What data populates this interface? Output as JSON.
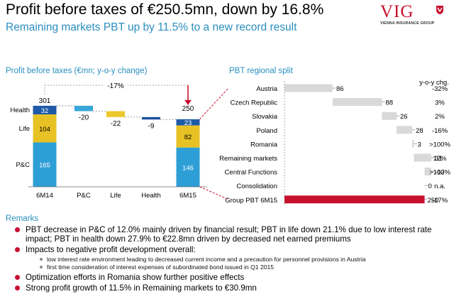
{
  "header": {
    "title": "Profit before taxes of €250.5mn, down by 16.8%",
    "subtitle": "Remaining markets PBT up by 11.5% to a new record result"
  },
  "logo": {
    "word": "VIG",
    "tagline": "VIENNA INSURANCE GROUP"
  },
  "left_title": "Profit before taxes (€mn; y-o-y change)",
  "right_title": "PBT regional split",
  "yoy_header": "y-o-y chg.",
  "chart_data": [
    {
      "type": "waterfall",
      "title": "Profit before taxes (€mn; y-o-y change)",
      "categories": [
        "6M14",
        "P&C",
        "Life",
        "Health",
        "6M15"
      ],
      "stacks": {
        "6M14": [
          {
            "name": "P&C",
            "value": 165
          },
          {
            "name": "Life",
            "value": 104
          },
          {
            "name": "Health",
            "value": 32
          }
        ],
        "6M15": [
          {
            "name": "P&C",
            "value": 146
          },
          {
            "name": "Life",
            "value": 82
          },
          {
            "name": "Health",
            "value": 23
          }
        ]
      },
      "totals": {
        "6M14": "301",
        "6M15": "250"
      },
      "changes": [
        {
          "category": "P&C",
          "value": -20,
          "label": "-20"
        },
        {
          "category": "Life",
          "value": -22,
          "label": "-22"
        },
        {
          "category": "Health",
          "value": -9,
          "label": "-9"
        }
      ],
      "series_labels": [
        "Health",
        "Life",
        "P&C"
      ],
      "overall_change": "-17%",
      "colors": {
        "P&C": "#2e9fd6",
        "Life": "#e8c224",
        "Health": "#1f5aa8",
        "P&C_change": "#37a6d9",
        "Life_change": "#ecc72b",
        "Health_change": "#1f4f9a",
        "arrow": "#c8102e"
      }
    },
    {
      "type": "waterfall-horizontal",
      "title": "PBT regional split",
      "categories": [
        "Austria",
        "Czech Republic",
        "Slovakia",
        "Poland",
        "Romania",
        "Remaining markets",
        "Central Functions",
        "Consolidation",
        "Group PBT 6M15"
      ],
      "values": [
        86,
        88,
        26,
        28,
        3,
        31,
        -12,
        0,
        250
      ],
      "value_labels": [
        "86",
        "88",
        "26",
        "28",
        "3",
        "31",
        "-12",
        "0",
        "250"
      ],
      "yoy_change": [
        "-32%",
        "3%",
        "2%",
        "-16%",
        ">100%",
        "12%",
        ">100%",
        "n.a.",
        "-17%"
      ],
      "colors": {
        "segment": "#d9d9d9",
        "total": "#c8102e"
      }
    }
  ],
  "remarks": {
    "title": "Remarks",
    "items": [
      "PBT decrease in P&C of 12.0% mainly driven by financial result; PBT in life down 21.1% due to low interest rate impact; PBT in health down 27.9% to €22.8mn driven by decreased net earned premiums",
      "Impacts to negative profit development overall:",
      "Optimization efforts in Romania show further positive effects",
      "Strong profit growth of 11.5% in Remaining markets to €30.9mn"
    ],
    "sub_items": [
      "low interest rate environment leading to decreased current income and a precaution for personnel provisions in Austria",
      "first time consideration of interest expenses of subordinated bond issued in Q1 2015"
    ]
  }
}
